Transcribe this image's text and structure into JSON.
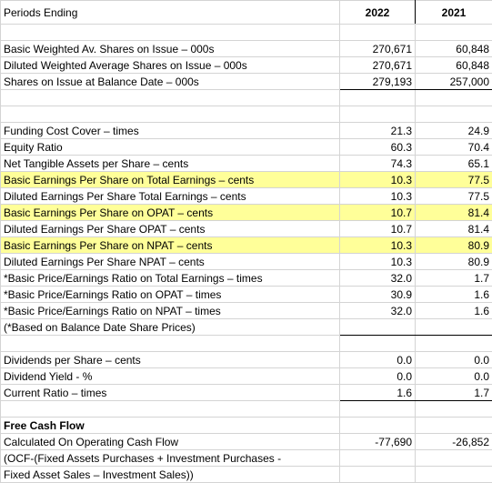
{
  "header": {
    "label": "Periods Ending",
    "col1": "2022",
    "col2": "2021"
  },
  "rows": [
    {
      "label": "",
      "v1": "",
      "v2": ""
    },
    {
      "label": "Basic Weighted Av. Shares on Issue – 000s",
      "v1": "270,671",
      "v2": "60,848"
    },
    {
      "label": "Diluted Weighted Average Shares on Issue – 000s",
      "v1": "270,671",
      "v2": "60,848"
    },
    {
      "label": "Shares on Issue at Balance Date – 000s",
      "v1": "279,193",
      "v2": "257,000"
    },
    {
      "label": "",
      "v1": "",
      "v2": ""
    },
    {
      "label": "",
      "v1": "",
      "v2": ""
    },
    {
      "label": "Funding Cost Cover – times",
      "v1": "21.3",
      "v2": "24.9"
    },
    {
      "label": "Equity Ratio",
      "v1": "60.3",
      "v2": "70.4"
    },
    {
      "label": "Net Tangible Assets per Share – cents",
      "v1": "74.3",
      "v2": "65.1"
    },
    {
      "label": "Basic Earnings Per Share on Total Earnings – cents",
      "v1": "10.3",
      "v2": "77.5"
    },
    {
      "label": "Diluted Earnings Per Share Total Earnings – cents",
      "v1": "10.3",
      "v2": "77.5"
    },
    {
      "label": "Basic Earnings Per Share on OPAT – cents",
      "v1": "10.7",
      "v2": "81.4"
    },
    {
      "label": "Diluted Earnings Per Share OPAT – cents",
      "v1": "10.7",
      "v2": "81.4"
    },
    {
      "label": "Basic Earnings Per Share on NPAT – cents",
      "v1": "10.3",
      "v2": "80.9"
    },
    {
      "label": "Diluted Earnings Per Share NPAT – cents",
      "v1": "10.3",
      "v2": "80.9"
    },
    {
      "label": "*Basic Price/Earnings Ratio on Total Earnings – times",
      "v1": "32.0",
      "v2": "1.7"
    },
    {
      "label": "*Basic Price/Earnings Ratio on OPAT – times",
      "v1": "30.9",
      "v2": "1.6"
    },
    {
      "label": "*Basic Price/Earnings Ratio on NPAT – times",
      "v1": "32.0",
      "v2": "1.6"
    },
    {
      "label": "(*Based on Balance Date Share Prices)",
      "v1": "",
      "v2": ""
    },
    {
      "label": "",
      "v1": "",
      "v2": ""
    },
    {
      "label": "Dividends per Share – cents",
      "v1": "0.0",
      "v2": "0.0"
    },
    {
      "label": "Dividend Yield - %",
      "v1": "0.0",
      "v2": "0.0"
    },
    {
      "label": "Current Ratio – times",
      "v1": "1.6",
      "v2": "1.7"
    },
    {
      "label": "",
      "v1": "",
      "v2": ""
    },
    {
      "label": "Free Cash Flow",
      "v1": "",
      "v2": ""
    },
    {
      "label": "Calculated On Operating Cash Flow",
      "v1": "-77,690",
      "v2": "-26,852"
    },
    {
      "label": "(OCF-(Fixed Assets Purchases + Investment Purchases -",
      "v1": "",
      "v2": ""
    },
    {
      "label": "Fixed Asset Sales – Investment Sales))",
      "v1": "",
      "v2": ""
    }
  ]
}
